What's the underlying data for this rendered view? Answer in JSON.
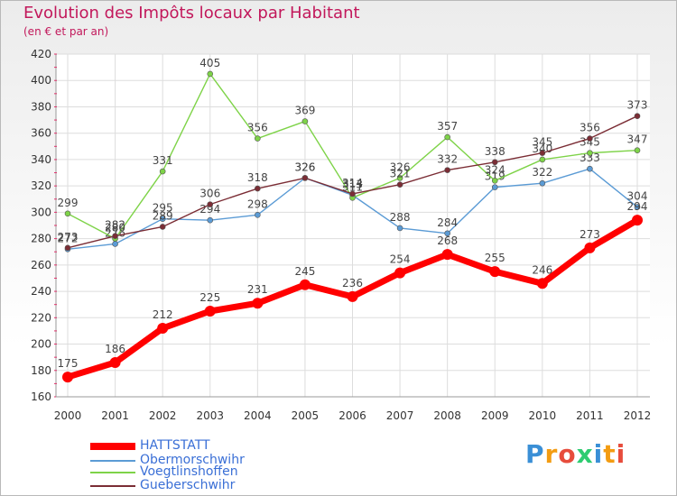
{
  "chart_data": {
    "type": "line",
    "title": "Evolution des Impôts locaux par Habitant",
    "subtitle": "(en € et par an)",
    "xlabel": "",
    "ylabel": "",
    "x": [
      2000,
      2001,
      2002,
      2003,
      2004,
      2005,
      2006,
      2007,
      2008,
      2009,
      2010,
      2011,
      2012
    ],
    "ylim": [
      160,
      420
    ],
    "yticks": [
      160,
      180,
      200,
      220,
      240,
      260,
      280,
      300,
      320,
      340,
      360,
      380,
      400,
      420
    ],
    "grid": true,
    "legend_position": "bottom-left",
    "series": [
      {
        "name": "HATTSTATT",
        "color": "#ff0000",
        "values": [
          175,
          186,
          212,
          225,
          231,
          245,
          236,
          254,
          268,
          255,
          246,
          273,
          294
        ]
      },
      {
        "name": "Obermorschwihr",
        "color": "#5b9bd5",
        "values": [
          272,
          276,
          295,
          294,
          298,
          326,
          313,
          288,
          284,
          319,
          322,
          333,
          304
        ]
      },
      {
        "name": "Voegtlinshoffen",
        "color": "#7ed348",
        "values": [
          299,
          280,
          331,
          405,
          356,
          369,
          311,
          326,
          357,
          324,
          340,
          345,
          347
        ]
      },
      {
        "name": "Gueberschwihr",
        "color": "#7b2d35",
        "values": [
          273,
          282,
          289,
          306,
          318,
          326,
          314,
          321,
          332,
          338,
          345,
          356,
          373
        ]
      }
    ]
  },
  "logo": {
    "letters": [
      "P",
      "r",
      "o",
      "x",
      "i",
      "t",
      "i"
    ],
    "colors": [
      "#3a8fd6",
      "#f39c12",
      "#e74c3c",
      "#2ecc71",
      "#3a8fd6",
      "#f39c12",
      "#e74c3c"
    ]
  }
}
